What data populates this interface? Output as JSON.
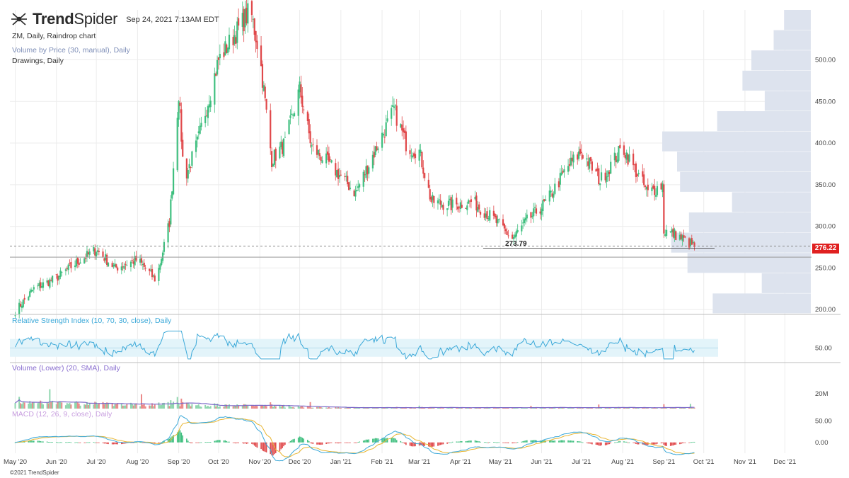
{
  "header": {
    "logo_text_bold": "Trend",
    "logo_text_light": "Spider",
    "date": "Sep 24, 2021 7:13AM EDT"
  },
  "info": {
    "symbol_line": "ZM, Daily, Raindrop chart",
    "vbp_line": "Volume by Price (30, manual), Daily",
    "drawings_line": "Drawings, Daily"
  },
  "panes": {
    "rsi_label": "Relative Strength Index (10, 70, 30, close), Daily",
    "volume_label": "Volume (Lower) (20, SMA), Daily",
    "macd_label": "MACD (12, 26, 9, close), Daily"
  },
  "footer": {
    "copyright": "©2021 TrendSpider"
  },
  "colors": {
    "up": "#3fbf7f",
    "down": "#e0484a",
    "rsi": "#3aa8d8",
    "rsi_band": "#e3f4fa",
    "vol_sma": "#7b68c8",
    "macd_line": "#3aa8d8",
    "signal_line": "#e8b530",
    "vbp": "#dde3ee",
    "last_price": "#e02020"
  },
  "chart_data": [
    {
      "type": "candlestick",
      "ylim": [
        195,
        560
      ],
      "x_ticks": [
        "May '20",
        "Jun '20",
        "Jul '20",
        "Aug '20",
        "Sep '20",
        "Oct '20",
        "Nov '20",
        "Dec '20",
        "Jan '21",
        "Feb '21",
        "Mar '21",
        "Apr '21",
        "May '21",
        "Jun '21",
        "Jul '21",
        "Aug '21",
        "Sep '21",
        "Oct '21",
        "Nov '21",
        "Dec '21"
      ],
      "y_ticks": [
        "500.00",
        "450.00",
        "400.00",
        "350.00",
        "300.00",
        "250.00",
        "200.00"
      ],
      "y_tick_values": [
        500,
        450,
        400,
        350,
        300,
        250,
        200
      ],
      "last_price": 276.22,
      "last_price_label": "276.22",
      "low_marker": 273.79,
      "low_marker_label": "273.79",
      "support_level": 263,
      "price_path": [
        [
          "2020-05-01",
          198
        ],
        [
          "2020-05-15",
          225
        ],
        [
          "2020-06-01",
          238
        ],
        [
          "2020-06-15",
          255
        ],
        [
          "2020-07-01",
          272
        ],
        [
          "2020-07-15",
          250
        ],
        [
          "2020-08-01",
          260
        ],
        [
          "2020-08-15",
          235
        ],
        [
          "2020-08-25",
          305
        ],
        [
          "2020-09-01",
          460
        ],
        [
          "2020-09-05",
          355
        ],
        [
          "2020-09-15",
          400
        ],
        [
          "2020-10-01",
          500
        ],
        [
          "2020-10-15",
          535
        ],
        [
          "2020-10-25",
          560
        ],
        [
          "2020-11-01",
          505
        ],
        [
          "2020-11-10",
          380
        ],
        [
          "2020-11-20",
          400
        ],
        [
          "2020-12-01",
          465
        ],
        [
          "2020-12-10",
          395
        ],
        [
          "2020-12-20",
          380
        ],
        [
          "2021-01-01",
          360
        ],
        [
          "2021-01-12",
          340
        ],
        [
          "2021-01-25",
          385
        ],
        [
          "2021-02-10",
          440
        ],
        [
          "2021-02-20",
          395
        ],
        [
          "2021-03-01",
          390
        ],
        [
          "2021-03-10",
          330
        ],
        [
          "2021-03-25",
          325
        ],
        [
          "2021-04-10",
          330
        ],
        [
          "2021-04-25",
          310
        ],
        [
          "2021-05-10",
          285
        ],
        [
          "2021-05-20",
          305
        ],
        [
          "2021-06-05",
          330
        ],
        [
          "2021-06-20",
          370
        ],
        [
          "2021-07-01",
          390
        ],
        [
          "2021-07-15",
          355
        ],
        [
          "2021-08-01",
          395
        ],
        [
          "2021-08-20",
          340
        ],
        [
          "2021-08-31",
          350
        ],
        [
          "2021-09-01",
          295
        ],
        [
          "2021-09-10",
          290
        ],
        [
          "2021-09-24",
          276
        ]
      ],
      "volume_by_price": [
        {
          "price": 550,
          "volume": 0.18
        },
        {
          "price": 525,
          "volume": 0.25
        },
        {
          "price": 500,
          "volume": 0.4
        },
        {
          "price": 475,
          "volume": 0.46
        },
        {
          "price": 450,
          "volume": 0.31
        },
        {
          "price": 425,
          "volume": 0.63
        },
        {
          "price": 400,
          "volume": 1.0
        },
        {
          "price": 375,
          "volume": 0.9
        },
        {
          "price": 350,
          "volume": 0.88
        },
        {
          "price": 325,
          "volume": 0.53
        },
        {
          "price": 300,
          "volume": 0.82
        },
        {
          "price": 275,
          "volume": 0.94
        },
        {
          "price": 250,
          "volume": 0.83
        },
        {
          "price": 225,
          "volume": 0.33
        },
        {
          "price": 200,
          "volume": 0.66
        }
      ]
    },
    {
      "type": "line",
      "name": "RSI",
      "ylim": [
        20,
        100
      ],
      "band": [
        30,
        70
      ],
      "y_ticks": [
        "50.00"
      ],
      "y_tick_values": [
        50
      ]
    },
    {
      "type": "bar",
      "name": "Volume",
      "y_ticks": [
        "20M"
      ],
      "y_tick_values": [
        20
      ],
      "ylim": [
        0,
        60
      ]
    },
    {
      "type": "line",
      "name": "MACD",
      "ylim": [
        -25,
        75
      ],
      "y_ticks": [
        "50.00",
        "0.00"
      ],
      "y_tick_values": [
        50,
        0
      ]
    }
  ]
}
